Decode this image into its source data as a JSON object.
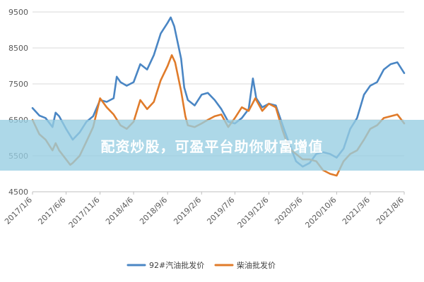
{
  "colors": {
    "gasoline": "#4a86c4",
    "diesel": "#e07b2a",
    "grid": "#d9d9d9",
    "axis": "#bfbfbf",
    "banner": "#96cde1"
  },
  "banner": {
    "text": "配资炒股，可盈平台助你财富增值"
  },
  "chart_data": {
    "type": "line",
    "title": "",
    "xlabel": "",
    "ylabel": "",
    "ylim": [
      4500,
      9500
    ],
    "yticks": [
      4500,
      5500,
      6500,
      7500,
      8500,
      9500
    ],
    "xlim": [
      "2017-01-06",
      "2021-08-06"
    ],
    "x_tick_labels": [
      "2017/1/6",
      "2017/6/6",
      "2017/11/6",
      "2018/4/6",
      "2018/9/6",
      "2019/2/6",
      "2019/7/6",
      "2019/12/6",
      "2020/5/6",
      "2020/10/6",
      "2021/3/6",
      "2021/8/6"
    ],
    "x_tick_dates": [
      "2017-01-06",
      "2017-06-06",
      "2017-11-06",
      "2018-04-06",
      "2018-09-06",
      "2019-02-06",
      "2019-07-06",
      "2019-12-06",
      "2020-05-06",
      "2020-10-06",
      "2021-03-06",
      "2021-08-06"
    ],
    "grid": "horizontal",
    "legend_position": "bottom",
    "series": [
      {
        "name": "92#汽油批发价",
        "color": "#4a86c4",
        "points": [
          [
            "2017-01-06",
            6830
          ],
          [
            "2017-02-06",
            6620
          ],
          [
            "2017-03-06",
            6550
          ],
          [
            "2017-04-06",
            6300
          ],
          [
            "2017-04-20",
            6700
          ],
          [
            "2017-05-06",
            6600
          ],
          [
            "2017-06-06",
            6250
          ],
          [
            "2017-07-06",
            5950
          ],
          [
            "2017-08-06",
            6150
          ],
          [
            "2017-09-06",
            6450
          ],
          [
            "2017-10-06",
            6600
          ],
          [
            "2017-11-06",
            7050
          ],
          [
            "2017-12-06",
            7000
          ],
          [
            "2018-01-06",
            7100
          ],
          [
            "2018-01-20",
            7700
          ],
          [
            "2018-02-06",
            7550
          ],
          [
            "2018-03-06",
            7450
          ],
          [
            "2018-04-06",
            7550
          ],
          [
            "2018-05-06",
            8050
          ],
          [
            "2018-06-06",
            7900
          ],
          [
            "2018-07-06",
            8300
          ],
          [
            "2018-08-06",
            8900
          ],
          [
            "2018-09-06",
            9200
          ],
          [
            "2018-09-20",
            9350
          ],
          [
            "2018-10-06",
            9100
          ],
          [
            "2018-11-06",
            8200
          ],
          [
            "2018-11-20",
            7400
          ],
          [
            "2018-12-06",
            7050
          ],
          [
            "2019-01-06",
            6900
          ],
          [
            "2019-02-06",
            7200
          ],
          [
            "2019-03-06",
            7250
          ],
          [
            "2019-04-06",
            7050
          ],
          [
            "2019-05-06",
            6800
          ],
          [
            "2019-06-06",
            6450
          ],
          [
            "2019-07-06",
            6400
          ],
          [
            "2019-08-06",
            6550
          ],
          [
            "2019-09-06",
            6800
          ],
          [
            "2019-09-25",
            7650
          ],
          [
            "2019-10-10",
            7100
          ],
          [
            "2019-11-06",
            6850
          ],
          [
            "2019-12-06",
            6950
          ],
          [
            "2020-01-06",
            6900
          ],
          [
            "2020-02-06",
            6350
          ],
          [
            "2020-03-06",
            5850
          ],
          [
            "2020-04-06",
            5350
          ],
          [
            "2020-05-06",
            5200
          ],
          [
            "2020-06-06",
            5300
          ],
          [
            "2020-07-06",
            5550
          ],
          [
            "2020-08-06",
            5600
          ],
          [
            "2020-09-06",
            5550
          ],
          [
            "2020-10-06",
            5450
          ],
          [
            "2020-11-06",
            5700
          ],
          [
            "2020-12-06",
            6250
          ],
          [
            "2021-01-06",
            6550
          ],
          [
            "2021-02-06",
            7200
          ],
          [
            "2021-03-06",
            7450
          ],
          [
            "2021-04-06",
            7550
          ],
          [
            "2021-05-06",
            7900
          ],
          [
            "2021-06-06",
            8050
          ],
          [
            "2021-07-06",
            8100
          ],
          [
            "2021-08-06",
            7800
          ]
        ]
      },
      {
        "name": "柴油批发价",
        "color": "#e07b2a",
        "points": [
          [
            "2017-01-06",
            6500
          ],
          [
            "2017-02-06",
            6100
          ],
          [
            "2017-03-06",
            5950
          ],
          [
            "2017-04-06",
            5650
          ],
          [
            "2017-04-20",
            5850
          ],
          [
            "2017-05-06",
            5650
          ],
          [
            "2017-06-06",
            5400
          ],
          [
            "2017-06-25",
            5250
          ],
          [
            "2017-07-06",
            5300
          ],
          [
            "2017-08-06",
            5500
          ],
          [
            "2017-09-06",
            5900
          ],
          [
            "2017-10-06",
            6300
          ],
          [
            "2017-11-06",
            7100
          ],
          [
            "2017-12-06",
            6850
          ],
          [
            "2018-01-06",
            6650
          ],
          [
            "2018-02-06",
            6350
          ],
          [
            "2018-03-06",
            6250
          ],
          [
            "2018-04-06",
            6450
          ],
          [
            "2018-05-06",
            7050
          ],
          [
            "2018-06-06",
            6800
          ],
          [
            "2018-07-06",
            7000
          ],
          [
            "2018-08-06",
            7600
          ],
          [
            "2018-09-06",
            8000
          ],
          [
            "2018-09-25",
            8300
          ],
          [
            "2018-10-10",
            8100
          ],
          [
            "2018-11-06",
            7300
          ],
          [
            "2018-11-25",
            6600
          ],
          [
            "2018-12-06",
            6350
          ],
          [
            "2019-01-06",
            6300
          ],
          [
            "2019-02-06",
            6400
          ],
          [
            "2019-03-06",
            6500
          ],
          [
            "2019-04-06",
            6600
          ],
          [
            "2019-05-06",
            6650
          ],
          [
            "2019-06-06",
            6300
          ],
          [
            "2019-07-06",
            6550
          ],
          [
            "2019-08-06",
            6850
          ],
          [
            "2019-09-06",
            6750
          ],
          [
            "2019-10-06",
            7100
          ],
          [
            "2019-11-06",
            6750
          ],
          [
            "2019-12-06",
            6950
          ],
          [
            "2020-01-06",
            6850
          ],
          [
            "2020-02-06",
            6200
          ],
          [
            "2020-03-06",
            5700
          ],
          [
            "2020-04-06",
            5550
          ],
          [
            "2020-05-06",
            5400
          ],
          [
            "2020-06-06",
            5400
          ],
          [
            "2020-07-06",
            5350
          ],
          [
            "2020-08-06",
            5100
          ],
          [
            "2020-09-06",
            5000
          ],
          [
            "2020-10-06",
            4950
          ],
          [
            "2020-11-06",
            5350
          ],
          [
            "2020-12-06",
            5550
          ],
          [
            "2021-01-06",
            5650
          ],
          [
            "2021-02-06",
            5950
          ],
          [
            "2021-03-06",
            6250
          ],
          [
            "2021-04-06",
            6350
          ],
          [
            "2021-05-06",
            6550
          ],
          [
            "2021-06-06",
            6600
          ],
          [
            "2021-07-06",
            6650
          ],
          [
            "2021-08-06",
            6400
          ]
        ]
      }
    ]
  }
}
